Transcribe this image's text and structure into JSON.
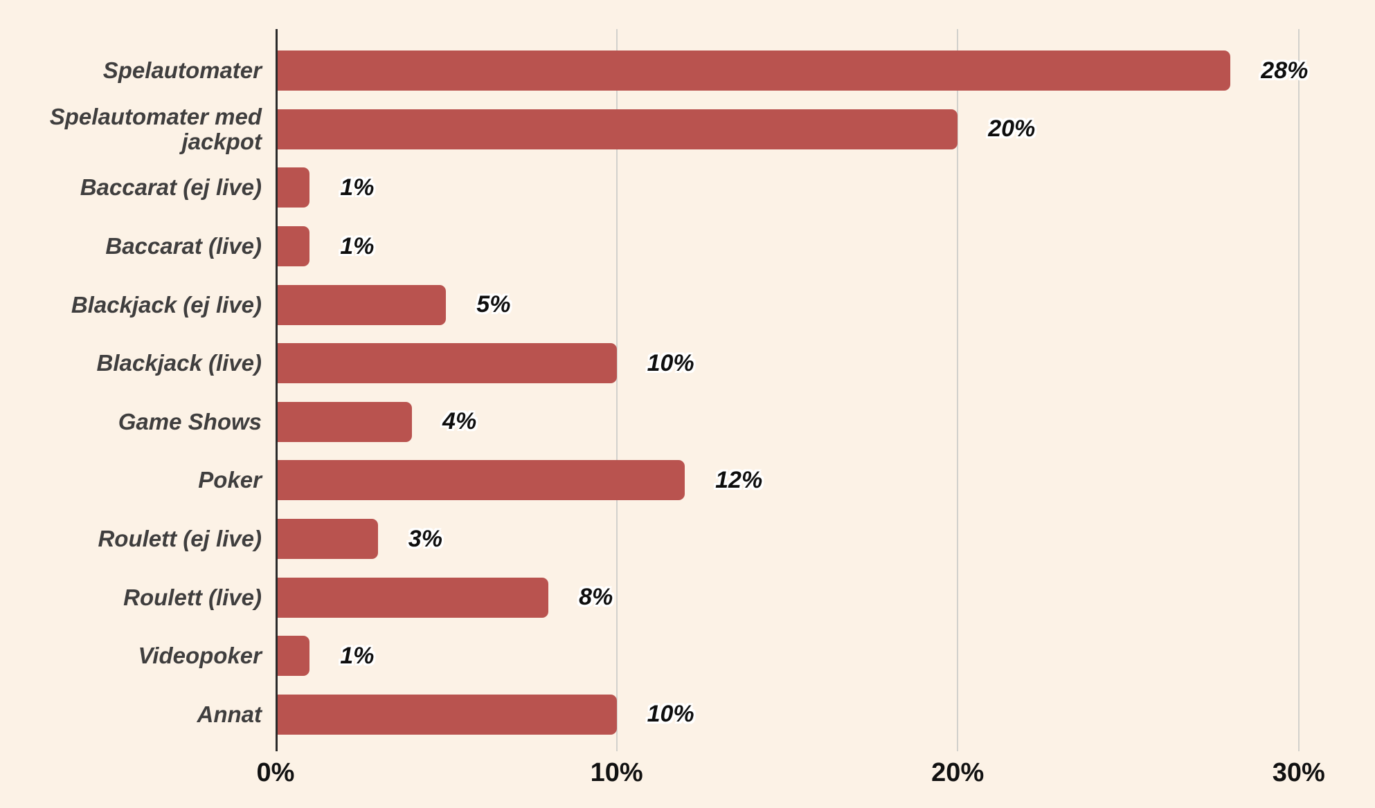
{
  "page": {
    "background": "#fcf2e6"
  },
  "chart_data": {
    "type": "bar",
    "orientation": "horizontal",
    "title": "",
    "xlabel": "",
    "ylabel": "",
    "legend": "none",
    "grid": "vertical gridlines at x ticks",
    "categories": [
      "Spelautomater",
      "Spelautomater med jackpot",
      "Baccarat (ej live)",
      "Baccarat (live)",
      "Blackjack (ej live)",
      "Blackjack (live)",
      "Game Shows",
      "Poker",
      "Roulett (ej live)",
      "Roulett (live)",
      "Videopoker",
      "Annat"
    ],
    "values": [
      28,
      20,
      1,
      1,
      5,
      10,
      4,
      12,
      3,
      8,
      1,
      10
    ],
    "value_labels": [
      "28%",
      "20%",
      "1%",
      "1%",
      "5%",
      "10%",
      "4%",
      "12%",
      "3%",
      "8%",
      "1%",
      "10%"
    ],
    "x_tick_values": [
      0,
      10,
      20,
      30
    ],
    "x_tick_labels": [
      "0%",
      "10%",
      "20%",
      "30%"
    ],
    "xlim": [
      0,
      31.1
    ],
    "colors": {
      "bar": "#b9534f",
      "background": "#fcf2e6",
      "category_label": "#3f3e3e",
      "value_label": "#0e0e0e",
      "value_label_halo": "#ffffff",
      "gridline": "#d2d1cc",
      "axis_line": "#2b2b2b",
      "tick_label": "#111111"
    }
  }
}
